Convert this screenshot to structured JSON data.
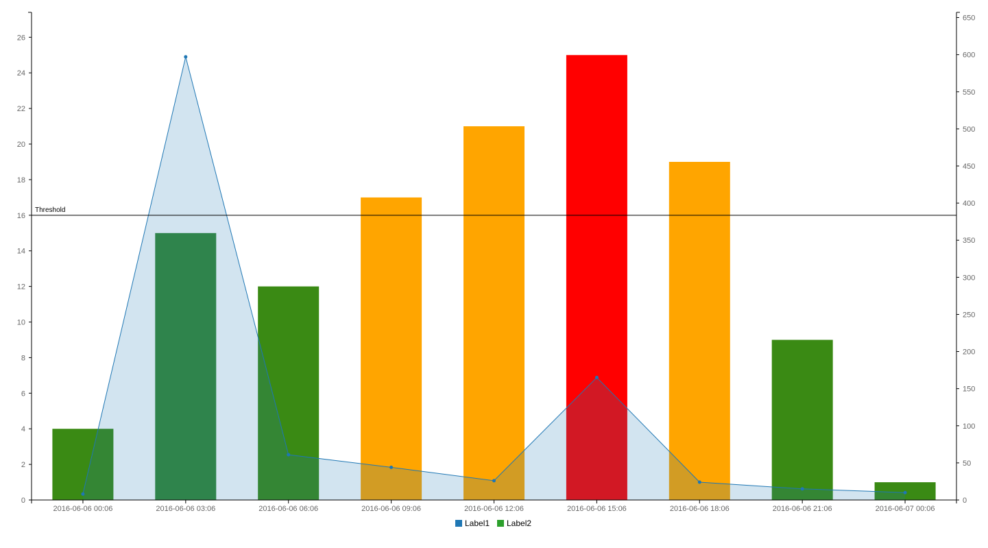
{
  "chart_data": {
    "type": "bar",
    "categories": [
      "2016-06-06 00:06",
      "2016-06-06 03:06",
      "2016-06-06 06:06",
      "2016-06-06 09:06",
      "2016-06-06 12:06",
      "2016-06-06 15:06",
      "2016-06-06 18:06",
      "2016-06-06 21:06",
      "2016-06-07 00:06"
    ],
    "series": [
      {
        "name": "Label1",
        "type": "area",
        "axis": "y2",
        "color": "#1f77b4",
        "values": [
          8,
          597,
          61,
          44,
          26,
          165,
          24,
          15,
          10
        ]
      },
      {
        "name": "Label2",
        "type": "bar",
        "axis": "y",
        "color": "#2ca02c",
        "values": [
          4,
          15,
          12,
          17,
          21,
          25,
          19,
          9,
          1
        ],
        "bar_colors": [
          "#3a8a14",
          "#348832",
          "#3a8a14",
          "#ffa500",
          "#ffa500",
          "#ff0000",
          "#ffa500",
          "#3a8a14",
          "#3a8a14"
        ]
      }
    ],
    "ylim": [
      0,
      27.4
    ],
    "y_ticks": [
      "0",
      "2",
      "4",
      "6",
      "8",
      "10",
      "12",
      "14",
      "16",
      "18",
      "20",
      "22",
      "24",
      "26"
    ],
    "y2lim": [
      0,
      657
    ],
    "y2_ticks": [
      "0",
      "50",
      "100",
      "150",
      "200",
      "250",
      "300",
      "350",
      "400",
      "450",
      "500",
      "550",
      "600",
      "650"
    ],
    "threshold": {
      "label": "Threshold",
      "value": 16
    },
    "legend_position": "bottom-center",
    "grid": false
  }
}
